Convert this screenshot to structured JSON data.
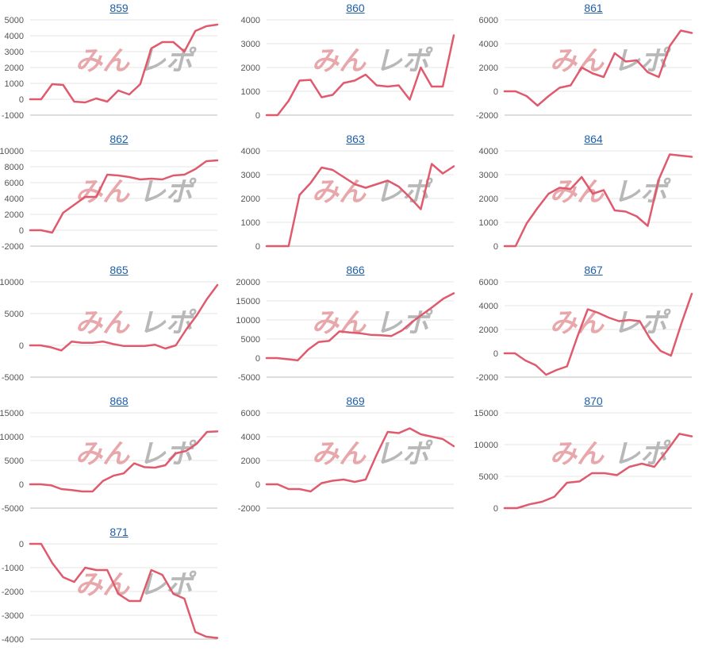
{
  "watermark": {
    "part1": "みん",
    "part2": "レポ",
    "color1": "#e8a7ab",
    "color2": "#b8b8b8"
  },
  "line_color": "#e05a6e",
  "chart_data": [
    {
      "type": "line",
      "title": "859",
      "ylim": [
        -1000,
        5000
      ],
      "yticks": [
        5000,
        4000,
        3000,
        2000,
        1000,
        0,
        -1000
      ],
      "values": [
        0,
        0,
        950,
        900,
        -150,
        -200,
        50,
        -150,
        550,
        300,
        950,
        3200,
        3600,
        3600,
        3000,
        4300,
        4600,
        4700
      ]
    },
    {
      "type": "line",
      "title": "860",
      "ylim": [
        0,
        4000
      ],
      "yticks": [
        4000,
        3000,
        2000,
        1000,
        0
      ],
      "values": [
        0,
        0,
        600,
        1450,
        1480,
        750,
        850,
        1350,
        1450,
        1700,
        1250,
        1200,
        1250,
        650,
        2000,
        1200,
        1200,
        3350
      ]
    },
    {
      "type": "line",
      "title": "861",
      "ylim": [
        -2000,
        6000
      ],
      "yticks": [
        6000,
        4000,
        2000,
        0,
        -2000
      ],
      "values": [
        0,
        0,
        -400,
        -1200,
        -400,
        300,
        500,
        2000,
        1500,
        1200,
        3200,
        2500,
        2600,
        1600,
        1200,
        3800,
        5100,
        4900
      ]
    },
    {
      "type": "line",
      "title": "862",
      "ylim": [
        -2000,
        10000
      ],
      "yticks": [
        10000,
        8000,
        6000,
        4000,
        2000,
        0,
        -2000
      ],
      "values": [
        0,
        0,
        -300,
        2200,
        3200,
        4200,
        4200,
        7000,
        6900,
        6700,
        6400,
        6500,
        6400,
        6900,
        7000,
        7700,
        8700,
        8800
      ]
    },
    {
      "type": "line",
      "title": "863",
      "ylim": [
        0,
        4000
      ],
      "yticks": [
        4000,
        3000,
        2000,
        1000,
        0
      ],
      "values": [
        0,
        0,
        0,
        2150,
        2650,
        3300,
        3200,
        2900,
        2600,
        2450,
        2600,
        2750,
        2500,
        2050,
        1550,
        3450,
        3050,
        3350
      ]
    },
    {
      "type": "line",
      "title": "864",
      "ylim": [
        0,
        4000
      ],
      "yticks": [
        4000,
        3000,
        2000,
        1000,
        0
      ],
      "values": [
        0,
        0,
        950,
        1600,
        2200,
        2450,
        2400,
        2900,
        2200,
        2350,
        1500,
        1450,
        1250,
        850,
        2800,
        3850,
        3800,
        3750
      ]
    },
    {
      "type": "line",
      "title": "865",
      "ylim": [
        -5000,
        10000
      ],
      "yticks": [
        10000,
        5000,
        0,
        -5000
      ],
      "values": [
        0,
        0,
        -300,
        -800,
        600,
        400,
        400,
        600,
        200,
        -100,
        -100,
        -100,
        100,
        -500,
        0,
        2500,
        4700,
        7300,
        9500
      ]
    },
    {
      "type": "line",
      "title": "866",
      "ylim": [
        -5000,
        20000
      ],
      "yticks": [
        20000,
        15000,
        10000,
        5000,
        0,
        -5000
      ],
      "values": [
        0,
        0,
        -300,
        -600,
        2200,
        4200,
        4500,
        7000,
        6700,
        6500,
        6100,
        6000,
        5800,
        7200,
        9500,
        11500,
        13500,
        15600,
        17000
      ]
    },
    {
      "type": "line",
      "title": "867",
      "ylim": [
        -2000,
        6000
      ],
      "yticks": [
        6000,
        4000,
        2000,
        0,
        -2000
      ],
      "values": [
        0,
        0,
        -600,
        -1000,
        -1800,
        -1400,
        -1100,
        1400,
        3700,
        3400,
        3000,
        2700,
        2800,
        2700,
        1200,
        200,
        -200,
        2500,
        5000
      ]
    },
    {
      "type": "line",
      "title": "868",
      "ylim": [
        -5000,
        15000
      ],
      "yticks": [
        15000,
        10000,
        5000,
        0,
        -5000
      ],
      "values": [
        0,
        0,
        -200,
        -1000,
        -1200,
        -1500,
        -1500,
        700,
        1800,
        2300,
        4400,
        3600,
        3500,
        4000,
        6500,
        7000,
        8500,
        11000,
        11100
      ]
    },
    {
      "type": "line",
      "title": "869",
      "ylim": [
        -2000,
        6000
      ],
      "yticks": [
        6000,
        4000,
        2000,
        0,
        -2000
      ],
      "values": [
        0,
        0,
        -400,
        -400,
        -600,
        100,
        300,
        400,
        200,
        400,
        2500,
        4400,
        4300,
        4700,
        4200,
        4000,
        3800,
        3200
      ]
    },
    {
      "type": "line",
      "title": "870",
      "ylim": [
        0,
        15000
      ],
      "yticks": [
        15000,
        10000,
        5000,
        0
      ],
      "values": [
        0,
        0,
        600,
        1000,
        1800,
        4000,
        4200,
        5500,
        5500,
        5200,
        6500,
        7000,
        6500,
        9000,
        11700,
        11300
      ]
    },
    {
      "type": "line",
      "title": "871",
      "ylim": [
        -4000,
        0
      ],
      "yticks": [
        0,
        -1000,
        -2000,
        -3000,
        -4000
      ],
      "values": [
        0,
        0,
        -800,
        -1400,
        -1600,
        -1000,
        -1100,
        -1100,
        -2100,
        -2400,
        -2400,
        -1100,
        -1300,
        -2100,
        -2300,
        -3700,
        -3900,
        -3950
      ]
    }
  ]
}
